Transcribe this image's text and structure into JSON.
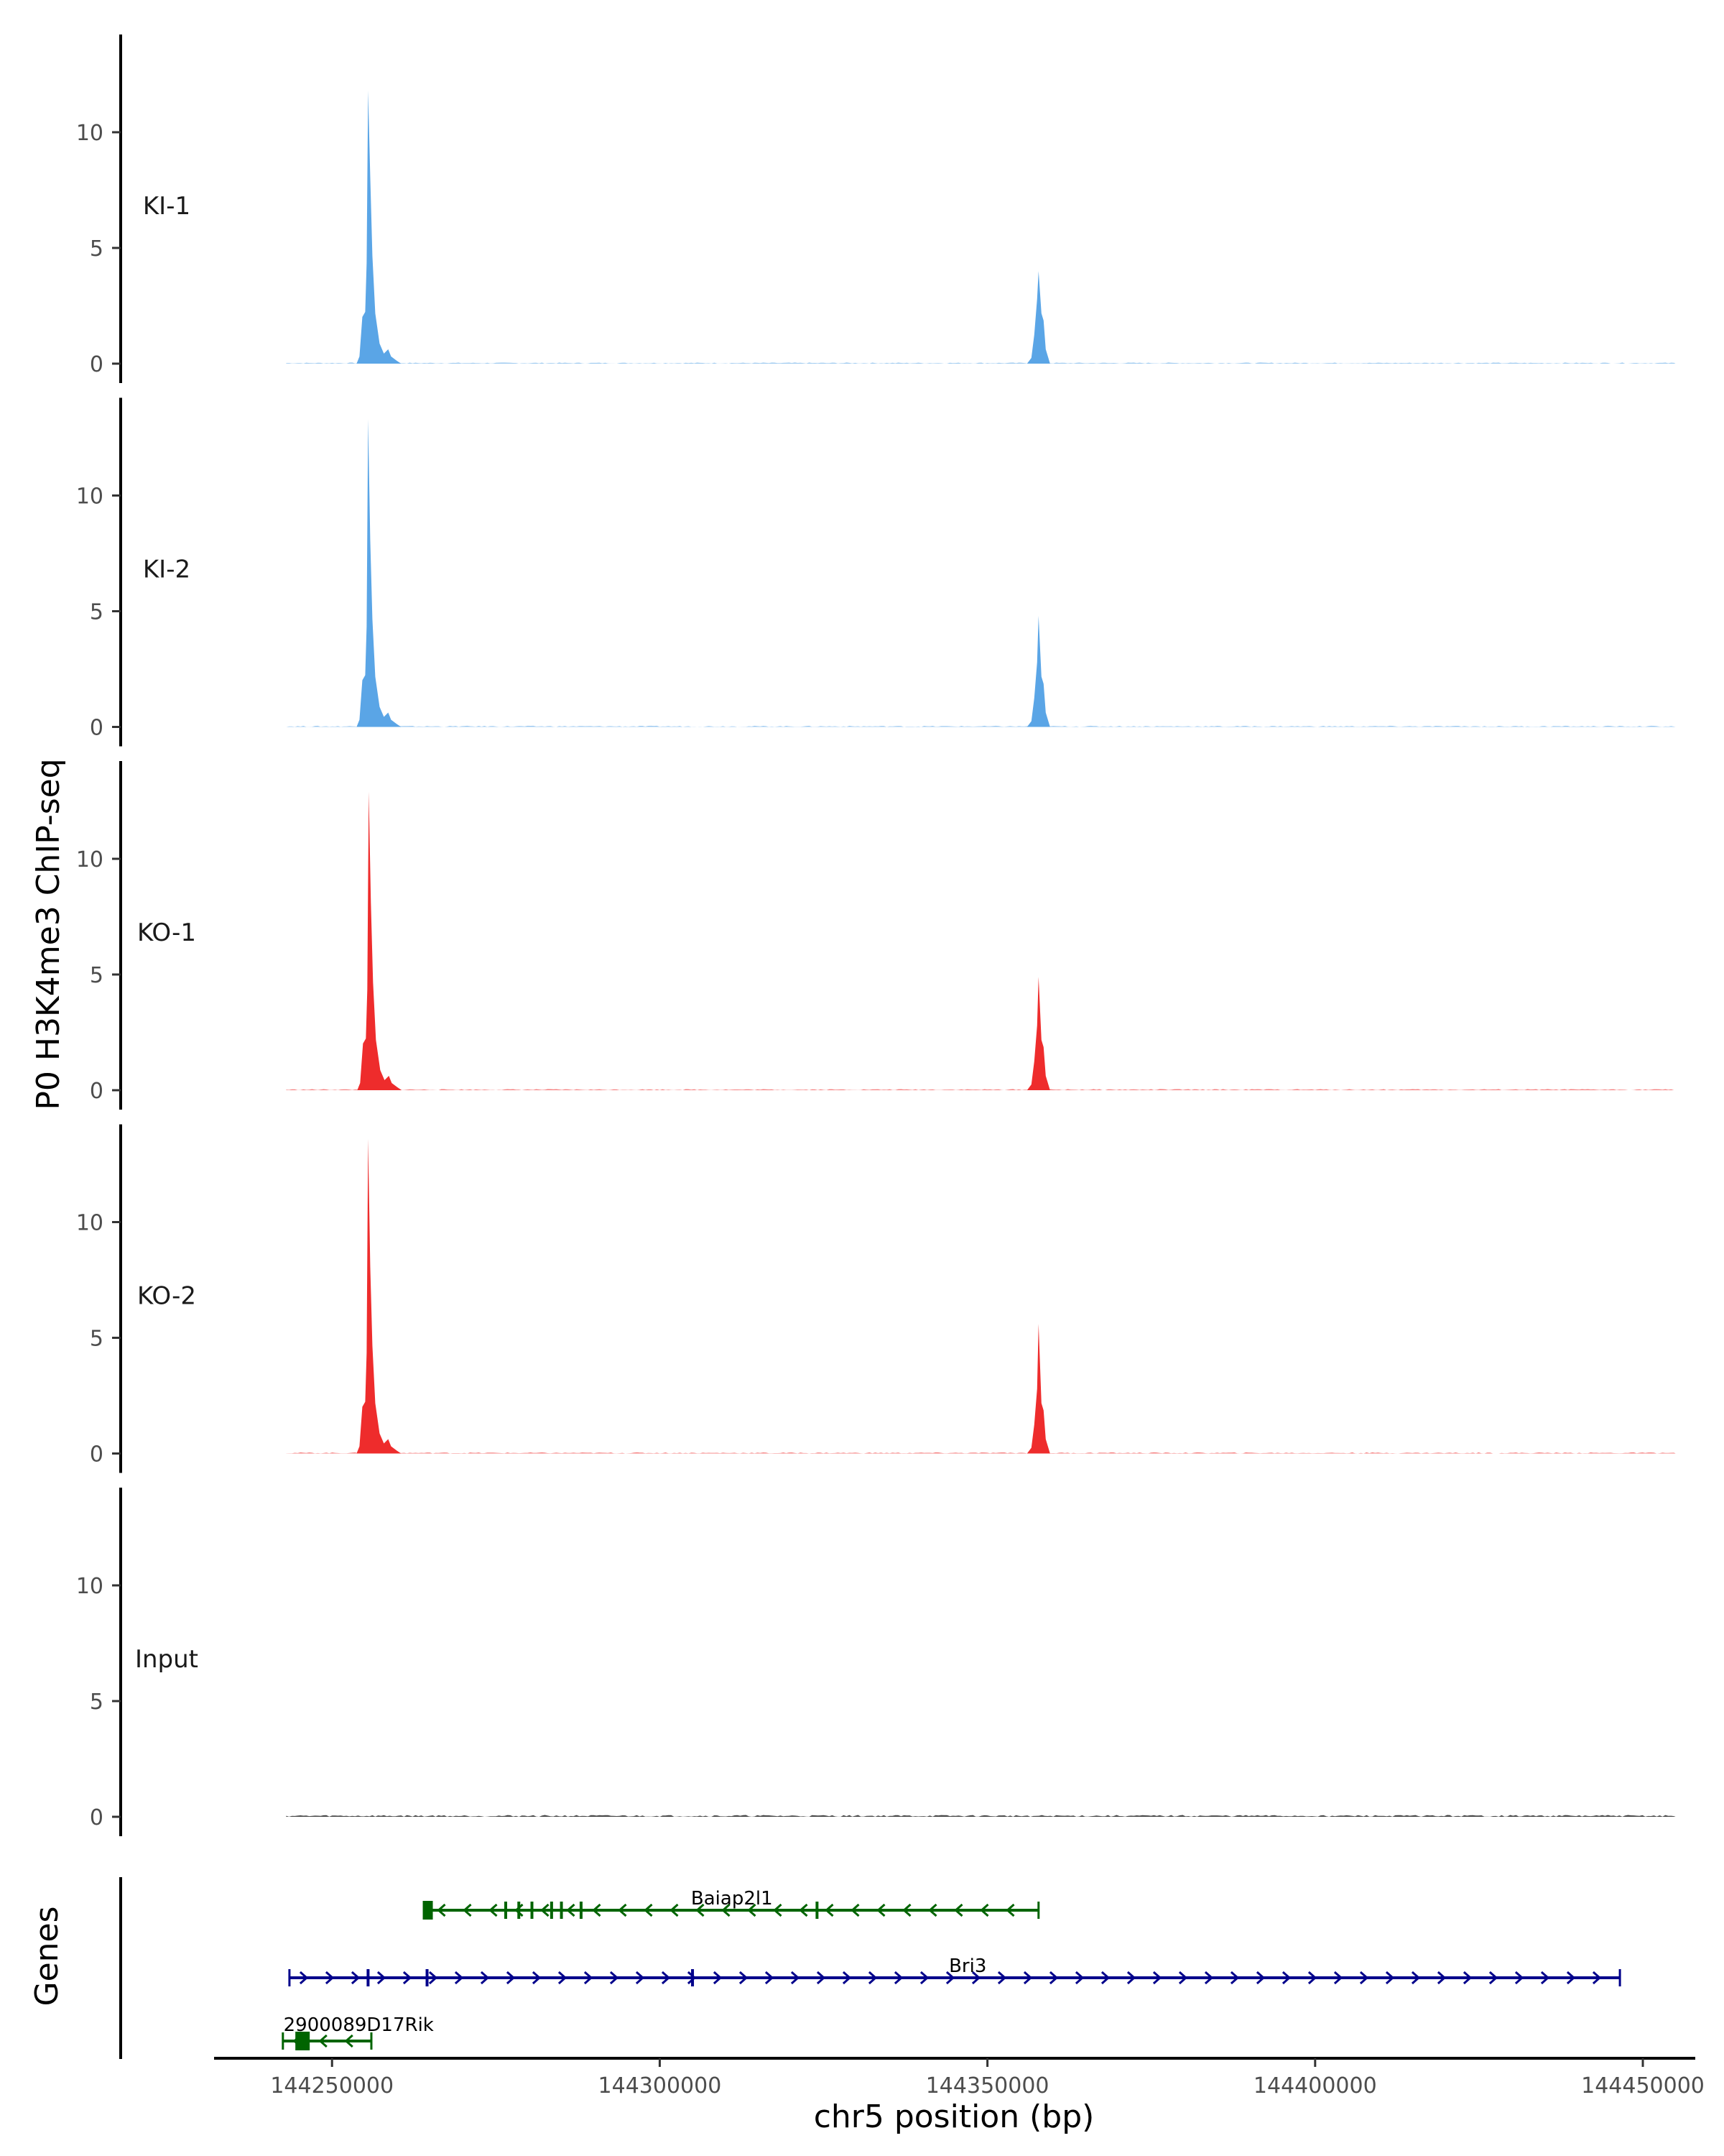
{
  "chart_data": {
    "type": "area",
    "title": "",
    "ylabel": "P0 H3K4me3 ChIP-seq",
    "xlabel": "chr5 position (bp)",
    "genes_label": "Genes",
    "ylim": [
      0,
      14
    ],
    "y_ticks": [
      0,
      5,
      10
    ],
    "xlim": [
      144232000,
      144458000
    ],
    "x_ticks": [
      144250000,
      144300000,
      144350000,
      144400000,
      144450000
    ],
    "x_tick_labels": [
      "144250000",
      "144300000",
      "144350000",
      "144400000",
      "144450000"
    ],
    "grid": false,
    "tracks": [
      {
        "name": "KI-1",
        "color": "#5aa5e6",
        "peaks": [
          {
            "x": 144255500,
            "y": 11.8
          },
          {
            "x": 144357800,
            "y": 4.0
          }
        ]
      },
      {
        "name": "KI-2",
        "color": "#5aa5e6",
        "peaks": [
          {
            "x": 144255500,
            "y": 13.3
          },
          {
            "x": 144357800,
            "y": 4.8
          }
        ]
      },
      {
        "name": "KO-1",
        "color": "#ee2c2c",
        "peaks": [
          {
            "x": 144255600,
            "y": 12.9
          },
          {
            "x": 144357800,
            "y": 4.9
          }
        ]
      },
      {
        "name": "KO-2",
        "color": "#ee2c2c",
        "peaks": [
          {
            "x": 144255500,
            "y": 13.6
          },
          {
            "x": 144357800,
            "y": 5.6
          }
        ]
      },
      {
        "name": "Input",
        "color": "#333333",
        "peaks": []
      }
    ],
    "genes": [
      {
        "name": "Baiap2l1",
        "start": 144264500,
        "end": 144357800,
        "strand": "-",
        "color": "#006400",
        "row": 0,
        "exons": [
          144264800,
          144276500,
          144278500,
          144280500,
          144283500,
          144285000,
          144288000,
          144324000
        ]
      },
      {
        "name": "Bri3",
        "start": 144243500,
        "end": 144446500,
        "strand": "+",
        "color": "#00008b",
        "row": 1,
        "exons": [
          144255500,
          144264500,
          144305000
        ]
      },
      {
        "name": "2900089D17Rik",
        "start": 144242500,
        "end": 144256000,
        "strand": "-",
        "color": "#006400",
        "row": 2,
        "exons": [
          144245500
        ]
      }
    ]
  }
}
